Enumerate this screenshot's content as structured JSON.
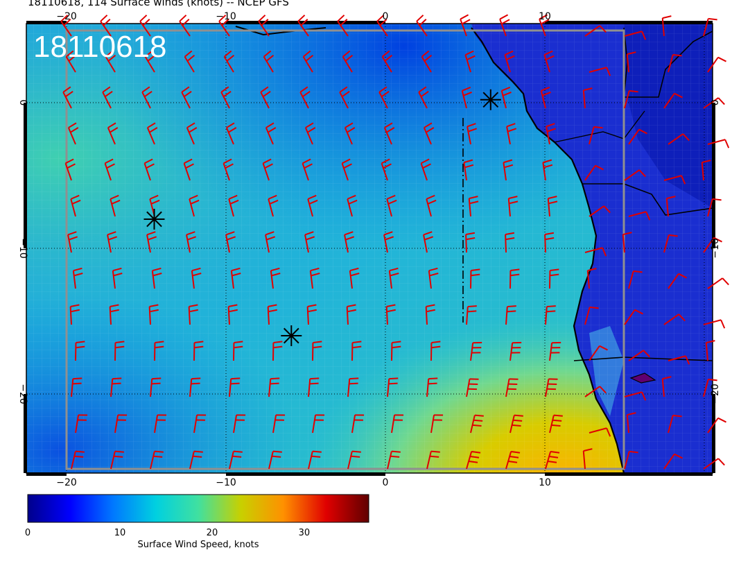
{
  "title": "18110618, 114 Surface winds (knots) -- NCEP GFS",
  "stamp": "18110618",
  "lon_ticks": [
    {
      "value": -20,
      "label": "−20"
    },
    {
      "value": -10,
      "label": "−10"
    },
    {
      "value": 0,
      "label": "0"
    },
    {
      "value": 10,
      "label": "10"
    }
  ],
  "lat_ticks": [
    {
      "value": 0,
      "label": "0"
    },
    {
      "value": -10,
      "label": "−10"
    },
    {
      "value": -20,
      "label": "−20"
    }
  ],
  "colorbar": {
    "label": "Surface Wind Speed, knots",
    "ticks": [
      {
        "value": 0,
        "label": "0"
      },
      {
        "value": 10,
        "label": "10"
      },
      {
        "value": 20,
        "label": "20"
      },
      {
        "value": 30,
        "label": "30"
      }
    ],
    "min": 0,
    "max": 37,
    "colors": [
      "#00008b",
      "#0000ff",
      "#0078ff",
      "#00d0e0",
      "#40e0a0",
      "#c8d000",
      "#ff9000",
      "#e00000",
      "#600000"
    ]
  },
  "markers": [
    {
      "lon": -14.5,
      "lat": -8
    },
    {
      "lon": -5.9,
      "lat": -16
    },
    {
      "lon": 6.6,
      "lat": 0.2
    }
  ],
  "barb_color": "#e00000",
  "extent": {
    "lon_min": -22.6,
    "lon_max": 20.0,
    "lat_min": -25.3,
    "lat_max": 5.4
  }
}
